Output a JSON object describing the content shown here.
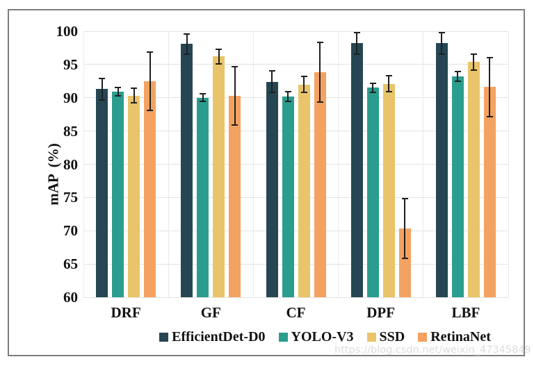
{
  "watermark": "https://blog.csdn.net/weixin_47345849",
  "chart_data": {
    "type": "bar",
    "title": "",
    "xlabel": "",
    "ylabel": "mAP (%)",
    "ylim": [
      60,
      100
    ],
    "yticks": [
      100,
      95,
      90,
      85,
      80,
      75,
      70,
      65,
      60
    ],
    "grid": true,
    "legend_position": "bottom",
    "error_bars": true,
    "categories": [
      "DRF",
      "GF",
      "CF",
      "DPF",
      "LBF"
    ],
    "series": [
      {
        "name": "EfficientDet-D0",
        "color": "#264653",
        "values": [
          91.3,
          98.1,
          92.4,
          98.2,
          98.2
        ],
        "errors": [
          1.6,
          1.5,
          1.6,
          1.6,
          1.6
        ]
      },
      {
        "name": "YOLO-V3",
        "color": "#2a9d8f",
        "values": [
          90.9,
          90.0,
          90.2,
          91.5,
          93.2
        ],
        "errors": [
          0.6,
          0.6,
          0.7,
          0.7,
          0.7
        ]
      },
      {
        "name": "SSD",
        "color": "#e9c46a",
        "values": [
          90.3,
          96.2,
          92.0,
          92.1,
          95.4
        ],
        "errors": [
          1.1,
          1.1,
          1.2,
          1.2,
          1.2
        ]
      },
      {
        "name": "RetinaNet",
        "color": "#f4a261",
        "values": [
          92.5,
          90.3,
          93.8,
          70.3,
          91.6
        ],
        "errors": [
          4.4,
          4.4,
          4.5,
          4.5,
          4.4
        ]
      }
    ]
  },
  "colors": {
    "gridline": "#e3e3e3",
    "frame_border": "#7d7d7d",
    "error_bar": "#1f1f1f",
    "watermark_text": "#dcdcdc"
  }
}
